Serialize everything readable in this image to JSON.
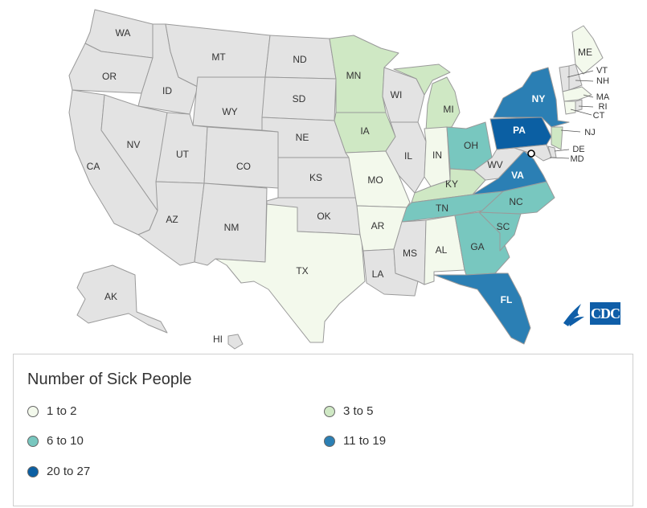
{
  "colors": {
    "no_data": "#e3e3e3",
    "bin_1": "#f3f9ec",
    "bin_2": "#cfe8c4",
    "bin_3": "#78c7bf",
    "bin_4": "#2b7fb4",
    "bin_5": "#0b5fa3",
    "border": "#9a9a9a"
  },
  "legend": {
    "title": "Number of Sick People",
    "bins": [
      {
        "label": "1 to 2",
        "color_key": "bin_1"
      },
      {
        "label": "3 to 5",
        "color_key": "bin_2"
      },
      {
        "label": "6 to 10",
        "color_key": "bin_3"
      },
      {
        "label": "11 to 19",
        "color_key": "bin_4"
      },
      {
        "label": "20 to 27",
        "color_key": "bin_5"
      }
    ]
  },
  "states": {
    "WA": {
      "label": "WA",
      "bin": 0
    },
    "OR": {
      "label": "OR",
      "bin": 0
    },
    "CA": {
      "label": "CA",
      "bin": 0
    },
    "ID": {
      "label": "ID",
      "bin": 0
    },
    "NV": {
      "label": "NV",
      "bin": 0
    },
    "MT": {
      "label": "MT",
      "bin": 0
    },
    "WY": {
      "label": "WY",
      "bin": 0
    },
    "UT": {
      "label": "UT",
      "bin": 0
    },
    "AZ": {
      "label": "AZ",
      "bin": 0
    },
    "CO": {
      "label": "CO",
      "bin": 0
    },
    "NM": {
      "label": "NM",
      "bin": 0
    },
    "ND": {
      "label": "ND",
      "bin": 0
    },
    "SD": {
      "label": "SD",
      "bin": 0
    },
    "NE": {
      "label": "NE",
      "bin": 0
    },
    "KS": {
      "label": "KS",
      "bin": 0
    },
    "OK": {
      "label": "OK",
      "bin": 0
    },
    "TX": {
      "label": "TX",
      "bin": 1
    },
    "MN": {
      "label": "MN",
      "bin": 2
    },
    "IA": {
      "label": "IA",
      "bin": 2
    },
    "MO": {
      "label": "MO",
      "bin": 1
    },
    "AR": {
      "label": "AR",
      "bin": 1
    },
    "LA": {
      "label": "LA",
      "bin": 0
    },
    "WI": {
      "label": "WI",
      "bin": 0
    },
    "IL": {
      "label": "IL",
      "bin": 0
    },
    "MI": {
      "label": "MI",
      "bin": 2
    },
    "IN": {
      "label": "IN",
      "bin": 1
    },
    "OH": {
      "label": "OH",
      "bin": 3
    },
    "KY": {
      "label": "KY",
      "bin": 2
    },
    "TN": {
      "label": "TN",
      "bin": 3
    },
    "MS": {
      "label": "MS",
      "bin": 0
    },
    "AL": {
      "label": "AL",
      "bin": 1
    },
    "GA": {
      "label": "GA",
      "bin": 3
    },
    "FL": {
      "label": "FL",
      "bin": 4
    },
    "SC": {
      "label": "SC",
      "bin": 3
    },
    "NC": {
      "label": "NC",
      "bin": 3
    },
    "VA": {
      "label": "VA",
      "bin": 4
    },
    "WV": {
      "label": "WV",
      "bin": 0
    },
    "PA": {
      "label": "PA",
      "bin": 5
    },
    "NY": {
      "label": "NY",
      "bin": 4
    },
    "ME": {
      "label": "ME",
      "bin": 1
    },
    "VT": {
      "label": "VT",
      "bin": 0
    },
    "NH": {
      "label": "NH",
      "bin": 0
    },
    "MA": {
      "label": "MA",
      "bin": 1
    },
    "RI": {
      "label": "RI",
      "bin": 0
    },
    "CT": {
      "label": "CT",
      "bin": 1
    },
    "NJ": {
      "label": "NJ",
      "bin": 2
    },
    "DE": {
      "label": "DE",
      "bin": 0
    },
    "MD": {
      "label": "MD",
      "bin": 0
    },
    "AK": {
      "label": "AK",
      "bin": 0
    },
    "HI": {
      "label": "HI",
      "bin": 0
    }
  },
  "logo": {
    "text": "CDC"
  }
}
